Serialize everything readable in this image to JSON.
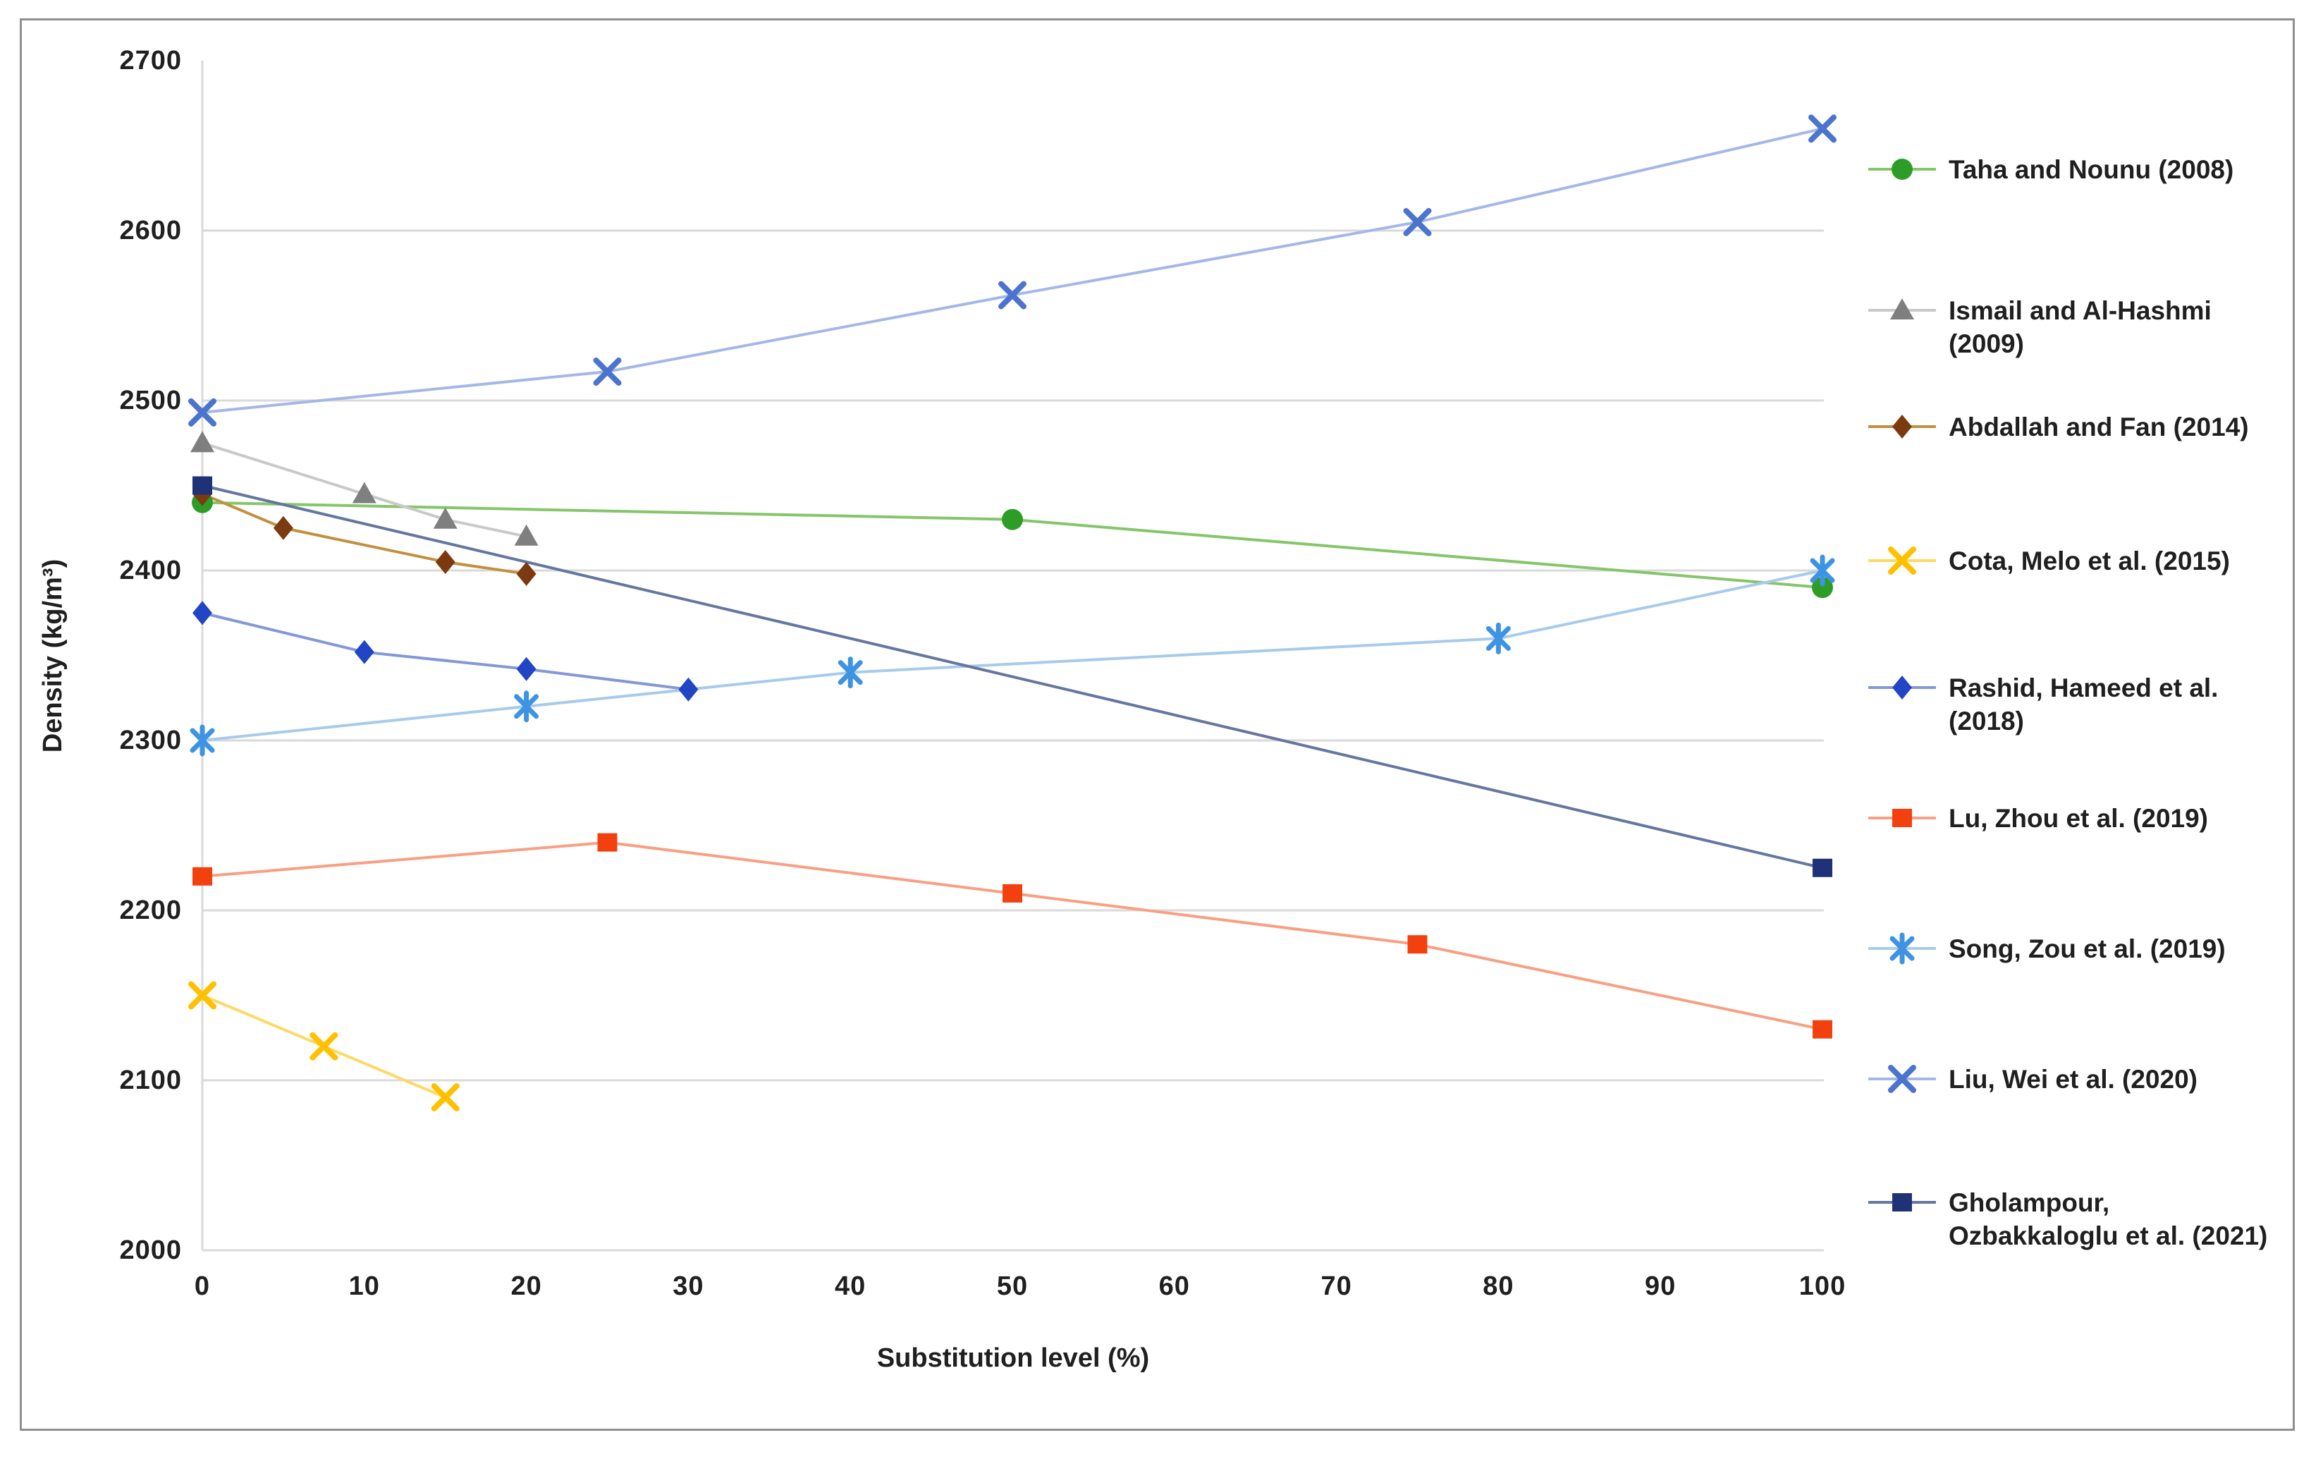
{
  "figure": {
    "background": "#FFFFFF",
    "frame_color": "#8F8F8F",
    "grid_color": "#DADADA",
    "axis_line_color": "#DADADA",
    "text_color": "#1F1F1F"
  },
  "chart_data": {
    "type": "line",
    "title": "",
    "xlabel": "Substitution level (%)",
    "ylabel": "Density (kg/m³)",
    "xlim": [
      0,
      100
    ],
    "ylim": [
      2000,
      2700
    ],
    "x_ticks": [
      0,
      10,
      20,
      30,
      40,
      50,
      60,
      70,
      80,
      90,
      100
    ],
    "y_ticks": [
      2000,
      2100,
      2200,
      2300,
      2400,
      2500,
      2600,
      2700
    ],
    "grid": "horizontal",
    "legend_position": "right",
    "series": [
      {
        "name": "Taha and Nounu (2008)",
        "legend_lines": [
          "Taha and Nounu (2008)"
        ],
        "marker": "circle",
        "color": "#2E9D28",
        "line_color": "#86C569",
        "points": [
          [
            0,
            2440
          ],
          [
            50,
            2430
          ],
          [
            100,
            2390
          ]
        ]
      },
      {
        "name": "Ismail and Al-Hashmi (2009)",
        "legend_lines": [
          "Ismail and Al-Hashmi",
          "(2009)"
        ],
        "marker": "triangle",
        "color": "#7F7F7F",
        "line_color": "#C9C9C9",
        "points": [
          [
            0,
            2475
          ],
          [
            10,
            2445
          ],
          [
            15,
            2430
          ],
          [
            20,
            2420
          ]
        ]
      },
      {
        "name": "Abdallah and Fan (2014)",
        "legend_lines": [
          "Abdallah and Fan (2014)"
        ],
        "marker": "diamond",
        "color": "#7C3A10",
        "line_color": "#C2903E",
        "points": [
          [
            0,
            2445
          ],
          [
            5,
            2425
          ],
          [
            15,
            2405
          ],
          [
            20,
            2398
          ]
        ]
      },
      {
        "name": "Cota, Melo et al. (2015)",
        "legend_lines": [
          "Cota, Melo et al. (2015)"
        ],
        "marker": "x",
        "color": "#FFC000",
        "line_color": "#FFD965",
        "points": [
          [
            0,
            2150
          ],
          [
            7.5,
            2120
          ],
          [
            15,
            2090
          ]
        ]
      },
      {
        "name": "Rashid, Hameed et al. (2018)",
        "legend_lines": [
          "Rashid, Hameed et al.",
          "(2018)"
        ],
        "marker": "diamond",
        "color": "#2145C4",
        "line_color": "#8498D8",
        "points": [
          [
            0,
            2375
          ],
          [
            10,
            2352
          ],
          [
            20,
            2342
          ],
          [
            30,
            2330
          ]
        ]
      },
      {
        "name": "Lu, Zhou et al. (2019)",
        "legend_lines": [
          "Lu, Zhou et al. (2019)"
        ],
        "marker": "square",
        "color": "#F2400F",
        "line_color": "#F7A083",
        "points": [
          [
            0,
            2220
          ],
          [
            25,
            2240
          ],
          [
            50,
            2210
          ],
          [
            75,
            2180
          ],
          [
            100,
            2130
          ]
        ]
      },
      {
        "name": "Song, Zou et al. (2019)",
        "legend_lines": [
          "Song, Zou et al. (2019)"
        ],
        "marker": "star",
        "color": "#3E93E3",
        "line_color": "#A8CBEC",
        "points": [
          [
            0,
            2300
          ],
          [
            20,
            2320
          ],
          [
            40,
            2340
          ],
          [
            80,
            2360
          ],
          [
            100,
            2400
          ]
        ]
      },
      {
        "name": "Liu, Wei et al. (2020)",
        "legend_lines": [
          "Liu, Wei et al. (2020)"
        ],
        "marker": "x",
        "color": "#4B74CE",
        "line_color": "#A4B8E8",
        "points": [
          [
            0,
            2493
          ],
          [
            25,
            2517
          ],
          [
            50,
            2562
          ],
          [
            75,
            2605
          ],
          [
            100,
            2660
          ]
        ]
      },
      {
        "name": "Gholampour, Ozbakkaloglu et al. (2021)",
        "legend_lines": [
          "Gholampour,",
          "Ozbakkaloglu et al. (2021)"
        ],
        "marker": "square",
        "color": "#1F3278",
        "line_color": "#64779F",
        "points": [
          [
            0,
            2450
          ],
          [
            100,
            2225
          ]
        ]
      }
    ]
  }
}
